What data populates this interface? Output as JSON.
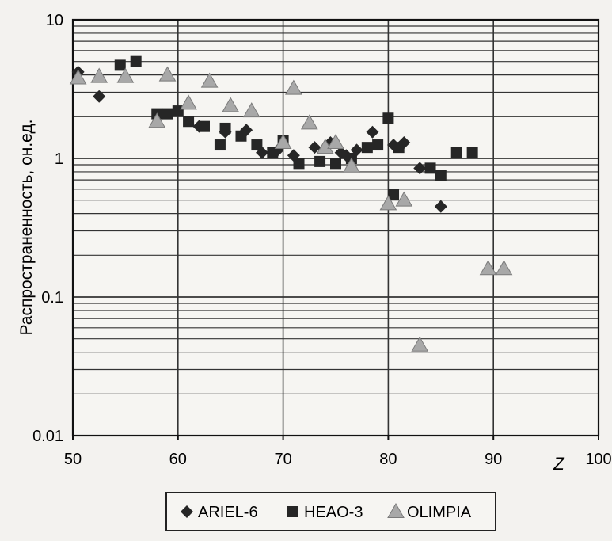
{
  "chart_data": {
    "type": "scatter",
    "xlabel": "Z",
    "ylabel": "Распространенность, он.ед.",
    "xlim": [
      50,
      100
    ],
    "ylim": [
      0.01,
      10
    ],
    "y_scale": "log",
    "grid": true,
    "legend_position": "bottom",
    "x_ticks": [
      "50",
      "60",
      "70",
      "80",
      "90",
      "100"
    ],
    "y_ticks": [
      "10",
      "1",
      "0.1",
      "0.01"
    ],
    "series": [
      {
        "name": "ARIEL-6",
        "marker": "diamond",
        "points": [
          [
            50.5,
            4.2
          ],
          [
            52.5,
            2.8
          ],
          [
            62,
            1.7
          ],
          [
            64.5,
            1.55
          ],
          [
            66.5,
            1.6
          ],
          [
            68,
            1.1
          ],
          [
            69.5,
            1.15
          ],
          [
            71,
            1.05
          ],
          [
            73,
            1.2
          ],
          [
            74.5,
            1.3
          ],
          [
            75.5,
            1.1
          ],
          [
            76,
            1.05
          ],
          [
            77,
            1.15
          ],
          [
            78.5,
            1.55
          ],
          [
            80.5,
            1.25
          ],
          [
            81.5,
            1.3
          ],
          [
            83,
            0.85
          ],
          [
            85,
            0.45
          ]
        ]
      },
      {
        "name": "HEAO-3",
        "marker": "square",
        "points": [
          [
            54.5,
            4.7
          ],
          [
            56,
            5.0
          ],
          [
            58,
            2.1
          ],
          [
            59,
            2.1
          ],
          [
            60,
            2.2
          ],
          [
            61,
            1.85
          ],
          [
            62.5,
            1.7
          ],
          [
            64,
            1.25
          ],
          [
            66,
            1.45
          ],
          [
            67.5,
            1.25
          ],
          [
            69,
            1.1
          ],
          [
            70,
            1.35
          ],
          [
            71.5,
            0.92
          ],
          [
            73.5,
            0.95
          ],
          [
            75,
            0.92
          ],
          [
            76.5,
            1.0
          ],
          [
            78,
            1.2
          ],
          [
            79,
            1.25
          ],
          [
            80,
            1.95
          ],
          [
            81,
            1.2
          ],
          [
            84,
            0.85
          ],
          [
            85,
            0.75
          ],
          [
            86.5,
            1.1
          ],
          [
            88,
            1.1
          ],
          [
            80.5,
            0.55
          ],
          [
            64.5,
            1.65
          ]
        ]
      },
      {
        "name": "OLIMPIA",
        "marker": "triangle",
        "points": [
          [
            50.5,
            3.8
          ],
          [
            52.5,
            3.9
          ],
          [
            55,
            3.9
          ],
          [
            59,
            4.0
          ],
          [
            61,
            2.5
          ],
          [
            63,
            3.6
          ],
          [
            65,
            2.4
          ],
          [
            67,
            2.2
          ],
          [
            70,
            1.3
          ],
          [
            71,
            3.2
          ],
          [
            72.5,
            1.8
          ],
          [
            74,
            1.2
          ],
          [
            75,
            1.3
          ],
          [
            76.5,
            0.88
          ],
          [
            80,
            0.47
          ],
          [
            81.5,
            0.5
          ],
          [
            83,
            0.045
          ],
          [
            89.5,
            0.16
          ],
          [
            91,
            0.16
          ],
          [
            58,
            1.85
          ]
        ]
      }
    ]
  }
}
